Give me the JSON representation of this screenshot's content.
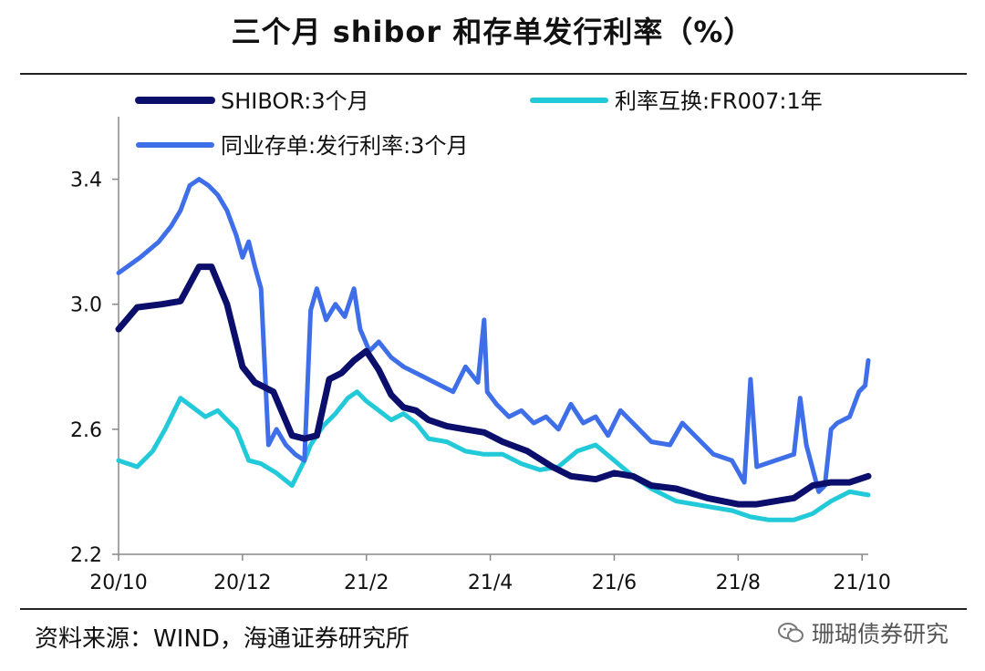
{
  "title": "三个月 shibor 和存单发行利率（%）",
  "source": "资料来源：WIND，海通证券研究所",
  "watermark": "珊瑚债券研究",
  "chart_data": {
    "type": "line",
    "title": "三个月 shibor 和存单发行利率（%）",
    "xlabel": "",
    "ylabel": "",
    "ylim": [
      2.2,
      3.6
    ],
    "yticks": [
      2.2,
      2.6,
      3.0,
      3.4
    ],
    "ytick_labels": [
      "2.2",
      "2.6",
      "3.0",
      "3.4"
    ],
    "xlim": [
      0,
      12.1
    ],
    "xticks": [
      0,
      2,
      4,
      6,
      8,
      10,
      12
    ],
    "xtick_labels": [
      "20/10",
      "20/12",
      "21/2",
      "21/4",
      "21/6",
      "21/8",
      "21/10"
    ],
    "x_units": "months since 2020-10",
    "legend": "top",
    "series": [
      {
        "name": "SHIBOR:3个月",
        "color": "#0b0f6b",
        "width": 7,
        "x": [
          0,
          0.3,
          0.7,
          1.0,
          1.3,
          1.5,
          1.75,
          2.0,
          2.2,
          2.5,
          2.8,
          3.0,
          3.2,
          3.4,
          3.6,
          3.8,
          4.0,
          4.2,
          4.4,
          4.6,
          4.8,
          5.0,
          5.3,
          5.6,
          5.9,
          6.2,
          6.6,
          7.0,
          7.3,
          7.7,
          8.0,
          8.3,
          8.6,
          9.0,
          9.5,
          10.0,
          10.3,
          10.6,
          10.9,
          11.2,
          11.5,
          11.8,
          12.1
        ],
        "values": [
          2.92,
          2.99,
          3.0,
          3.01,
          3.12,
          3.12,
          3.0,
          2.8,
          2.75,
          2.72,
          2.58,
          2.57,
          2.58,
          2.76,
          2.78,
          2.82,
          2.85,
          2.79,
          2.71,
          2.67,
          2.66,
          2.63,
          2.61,
          2.6,
          2.59,
          2.56,
          2.53,
          2.48,
          2.45,
          2.44,
          2.46,
          2.45,
          2.42,
          2.41,
          2.38,
          2.36,
          2.36,
          2.37,
          2.38,
          2.42,
          2.43,
          2.43,
          2.45
        ]
      },
      {
        "name": "利率互换:FR007:1年",
        "color": "#22c9d8",
        "width": 5,
        "x": [
          0,
          0.3,
          0.55,
          0.75,
          1.0,
          1.2,
          1.4,
          1.6,
          1.9,
          2.1,
          2.3,
          2.55,
          2.8,
          3.0,
          3.1,
          3.3,
          3.5,
          3.7,
          3.85,
          4.0,
          4.2,
          4.4,
          4.6,
          4.8,
          5.0,
          5.3,
          5.6,
          5.9,
          6.2,
          6.5,
          6.8,
          7.1,
          7.4,
          7.7,
          8.0,
          8.3,
          8.6,
          9.0,
          9.3,
          9.6,
          9.9,
          10.2,
          10.5,
          10.9,
          11.2,
          11.5,
          11.8,
          12.1
        ],
        "values": [
          2.5,
          2.48,
          2.53,
          2.6,
          2.7,
          2.67,
          2.64,
          2.66,
          2.6,
          2.5,
          2.49,
          2.46,
          2.42,
          2.5,
          2.55,
          2.61,
          2.65,
          2.7,
          2.72,
          2.69,
          2.66,
          2.63,
          2.65,
          2.62,
          2.57,
          2.56,
          2.53,
          2.52,
          2.52,
          2.49,
          2.47,
          2.48,
          2.53,
          2.55,
          2.5,
          2.45,
          2.41,
          2.37,
          2.36,
          2.35,
          2.34,
          2.32,
          2.31,
          2.31,
          2.33,
          2.37,
          2.4,
          2.39
        ]
      },
      {
        "name": "同业存单:发行利率:3个月",
        "color": "#3f6fe8",
        "width": 5,
        "x": [
          0,
          0.35,
          0.65,
          0.85,
          1.0,
          1.15,
          1.3,
          1.45,
          1.6,
          1.75,
          1.9,
          2.0,
          2.1,
          2.2,
          2.3,
          2.42,
          2.55,
          2.7,
          2.85,
          3.0,
          3.1,
          3.2,
          3.35,
          3.5,
          3.65,
          3.8,
          3.9,
          4.05,
          4.2,
          4.4,
          4.6,
          4.8,
          5.0,
          5.2,
          5.4,
          5.6,
          5.8,
          5.9,
          5.95,
          6.1,
          6.3,
          6.5,
          6.7,
          6.9,
          7.1,
          7.3,
          7.5,
          7.7,
          7.9,
          8.1,
          8.3,
          8.6,
          8.9,
          9.1,
          9.3,
          9.6,
          9.9,
          10.1,
          10.2,
          10.3,
          10.6,
          10.9,
          11.0,
          11.1,
          11.3,
          11.4,
          11.5,
          11.6,
          11.8,
          11.95,
          12.05,
          12.1
        ],
        "values": [
          3.1,
          3.15,
          3.2,
          3.25,
          3.3,
          3.38,
          3.4,
          3.38,
          3.35,
          3.3,
          3.22,
          3.15,
          3.2,
          3.12,
          3.05,
          2.55,
          2.6,
          2.55,
          2.52,
          2.5,
          2.98,
          3.05,
          2.95,
          3.0,
          2.96,
          3.05,
          2.92,
          2.85,
          2.88,
          2.83,
          2.8,
          2.78,
          2.76,
          2.74,
          2.72,
          2.8,
          2.75,
          2.95,
          2.72,
          2.68,
          2.64,
          2.66,
          2.62,
          2.64,
          2.6,
          2.68,
          2.62,
          2.64,
          2.58,
          2.66,
          2.62,
          2.56,
          2.55,
          2.62,
          2.58,
          2.52,
          2.5,
          2.43,
          2.76,
          2.48,
          2.5,
          2.52,
          2.7,
          2.55,
          2.4,
          2.42,
          2.6,
          2.62,
          2.64,
          2.72,
          2.74,
          2.82
        ]
      }
    ]
  }
}
